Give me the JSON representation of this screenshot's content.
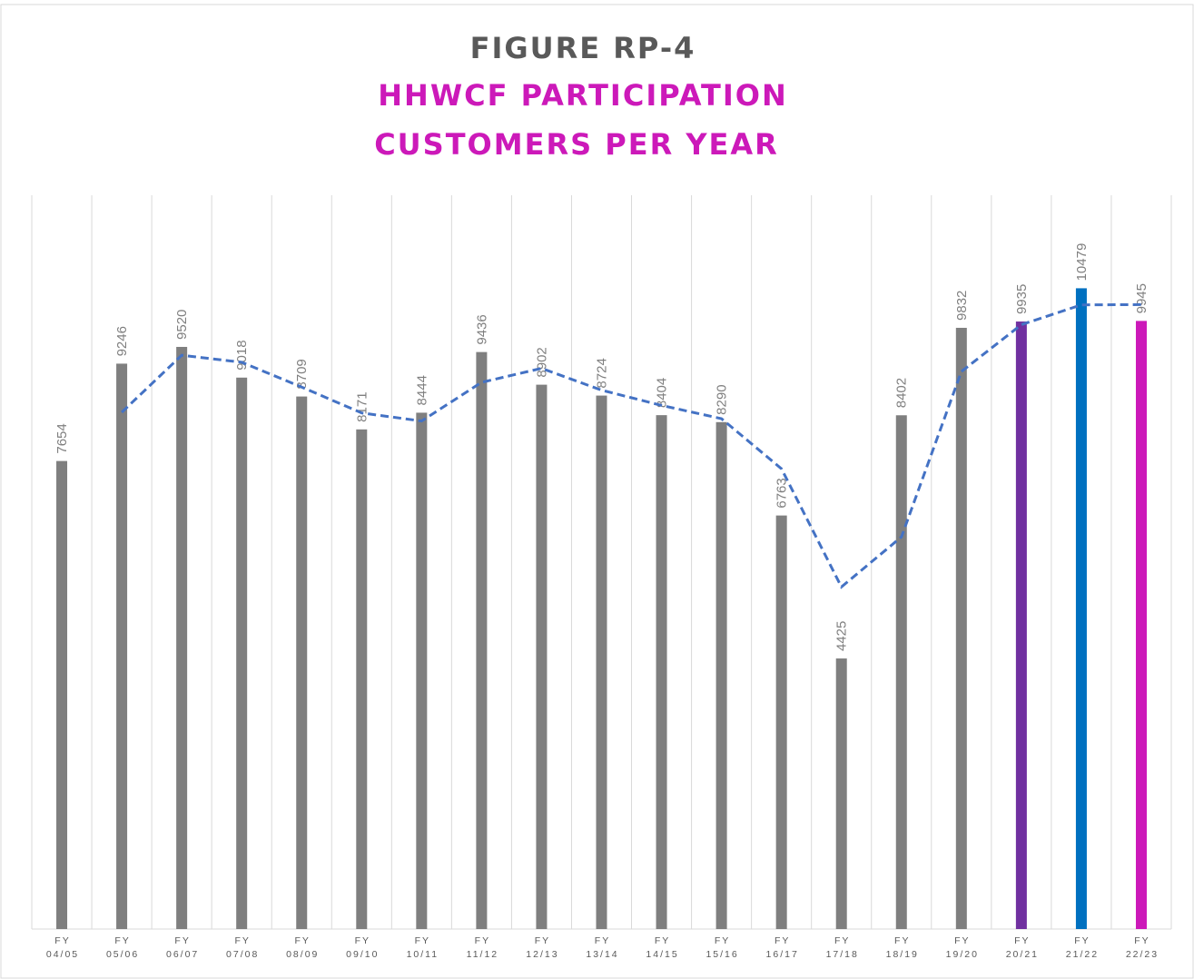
{
  "chart_data": {
    "type": "bar",
    "title": "FIGURE RP-4",
    "subtitle": [
      "HHWCF PARTICIPATION",
      "CUSTOMERS PER YEAR"
    ],
    "categories": [
      "FY 04/05",
      "FY 05/06",
      "FY 06/07",
      "FY 07/08",
      "FY 08/09",
      "FY 09/10",
      "FY 10/11",
      "FY 11/12",
      "FY 12/13",
      "FY 13/14",
      "FY 14/15",
      "FY 15/16",
      "FY 16/17",
      "FY 17/18",
      "FY 18/19",
      "FY 19/20",
      "FY 20/21",
      "FY 21/22",
      "FY 22/23"
    ],
    "values": [
      7654,
      9246,
      9520,
      9018,
      8709,
      8171,
      8444,
      9436,
      8902,
      8724,
      8404,
      8290,
      6763,
      4425,
      8402,
      9832,
      9935,
      10479,
      9945
    ],
    "colors": [
      "#7f7f7f",
      "#7f7f7f",
      "#7f7f7f",
      "#7f7f7f",
      "#7f7f7f",
      "#7f7f7f",
      "#7f7f7f",
      "#7f7f7f",
      "#7f7f7f",
      "#7f7f7f",
      "#7f7f7f",
      "#7f7f7f",
      "#7f7f7f",
      "#7f7f7f",
      "#7f7f7f",
      "#7f7f7f",
      "#7030a0",
      "#0070c0",
      "#cc19b9"
    ],
    "trend": {
      "color": "#4472c4",
      "values": [
        null,
        8450,
        9383,
        9269,
        8863.5,
        8440,
        8307.5,
        8940,
        9169,
        8813,
        8564,
        8347,
        7526.5,
        5594,
        6413.5,
        9117,
        9883.5,
        10207,
        10212
      ]
    },
    "ylim": [
      0,
      12000
    ],
    "grid": true
  }
}
